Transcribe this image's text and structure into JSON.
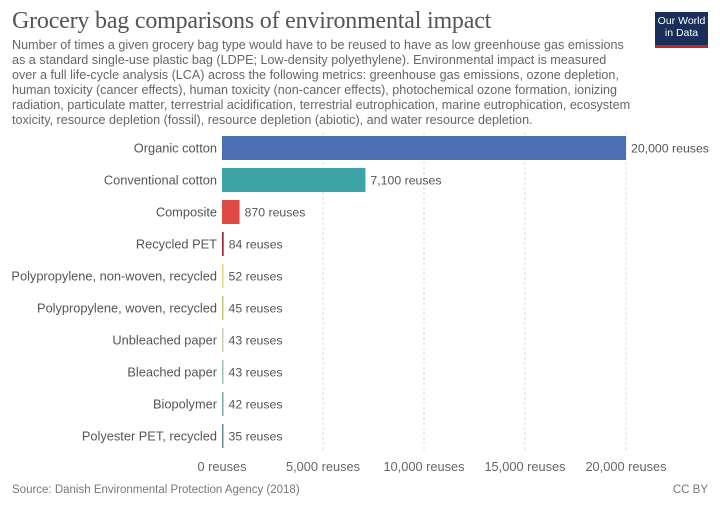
{
  "header": {
    "title": "Grocery bag comparisons of environmental impact",
    "subtitle": "Number of times a given grocery bag type would have to be reused to have as low greenhouse gas emissions as a standard single-use plastic bag (LDPE; Low-density polyethylene). Environmental impact is measured over a full life-cycle analysis (LCA) across the following metrics: greenhouse gas emissions, ozone depletion, human toxicity (cancer effects), human toxicity (non-cancer effects), photochemical ozone formation, ionizing radiation, particulate matter, terrestrial acidification, terrestrial eutrophication, marine eutrophication, ecosystem toxicity, resource depletion (fossil), resource depletion (abiotic), and water resource depletion.",
    "logo_line1": "Our World",
    "logo_line2": "in Data"
  },
  "footer": {
    "source": "Source: Danish Environmental Protection Agency (2018)",
    "license": "CC BY"
  },
  "chart_data": {
    "type": "bar",
    "orientation": "horizontal",
    "title": "Grocery bag comparisons of environmental impact",
    "xlabel": "",
    "ylabel": "",
    "xlim": [
      0,
      20000
    ],
    "grid": true,
    "legend": "none",
    "unit_suffix": " reuses",
    "x_ticks": [
      0,
      5000,
      10000,
      15000,
      20000
    ],
    "x_tick_labels": [
      "0 reuses",
      "5,000 reuses",
      "10,000 reuses",
      "15,000 reuses",
      "20,000 reuses"
    ],
    "categories": [
      "Organic cotton",
      "Conventional cotton",
      "Composite",
      "Recycled PET",
      "Polypropylene, non-woven, recycled",
      "Polypropylene, woven, recycled",
      "Unbleached paper",
      "Bleached paper",
      "Biopolymer",
      "Polyester PET, recycled"
    ],
    "values": [
      20000,
      7100,
      870,
      84,
      52,
      45,
      43,
      43,
      42,
      35
    ],
    "value_labels": [
      "20,000 reuses",
      "7,100 reuses",
      "870 reuses",
      "84 reuses",
      "52 reuses",
      "45 reuses",
      "43 reuses",
      "43 reuses",
      "42 reuses",
      "35 reuses"
    ],
    "colors": [
      "#4c6fb4",
      "#3ea3a5",
      "#e04a45",
      "#a2263a",
      "#e6d57a",
      "#c8c870",
      "#c7d3b8",
      "#9fc3b5",
      "#7fa6a8",
      "#6a8a9e"
    ]
  }
}
